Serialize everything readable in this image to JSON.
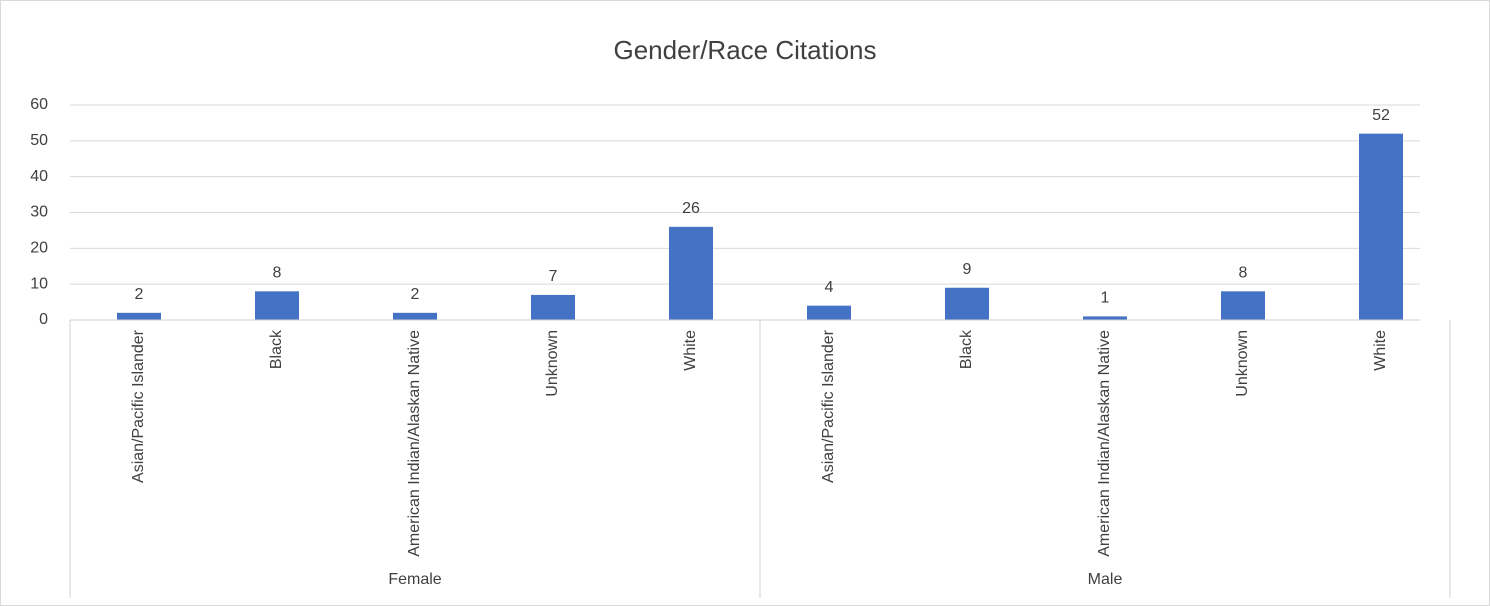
{
  "chart_data": {
    "type": "bar",
    "title": "Gender/Race Citations",
    "color": "#4472c4",
    "groups": [
      {
        "name": "Female",
        "categories": [
          "Asian/Pacific Islander",
          "Black",
          "American Indian/Alaskan Native",
          "Unknown",
          "White"
        ],
        "values": [
          2,
          8,
          2,
          7,
          26
        ]
      },
      {
        "name": "Male",
        "categories": [
          "Asian/Pacific Islander",
          "Black",
          "American Indian/Alaskan Native",
          "Unknown",
          "White"
        ],
        "values": [
          4,
          9,
          1,
          8,
          52
        ]
      }
    ],
    "ylim": [
      0,
      60
    ],
    "yticks": [
      0,
      10,
      20,
      30,
      40,
      50,
      60
    ],
    "grid": true
  }
}
